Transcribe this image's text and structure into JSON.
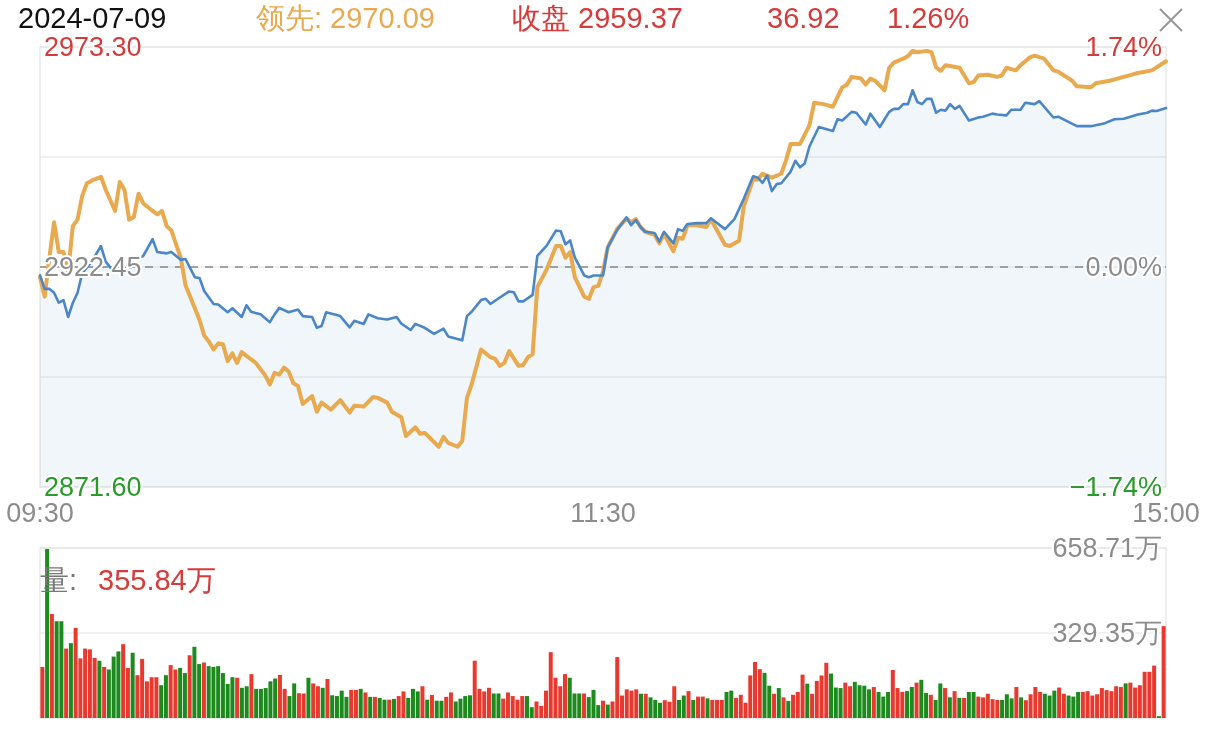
{
  "chart_data": [
    {
      "type": "line",
      "title": "2024-07-09",
      "annotations": [
        "领先: 2970.09",
        "收盘 2959.37",
        "36.92",
        "1.26%"
      ],
      "categories": [
        "09:30",
        null,
        null,
        null,
        null,
        null,
        null,
        null,
        null,
        null,
        null,
        null,
        null,
        null,
        null,
        null,
        null,
        null,
        null,
        null,
        null,
        null,
        null,
        null,
        null,
        null,
        null,
        null,
        null,
        null,
        null,
        null,
        null,
        null,
        null,
        null,
        null,
        null,
        null,
        null,
        null,
        null,
        null,
        null,
        null,
        null,
        null,
        null,
        null,
        null,
        null,
        null,
        null,
        null,
        null,
        null,
        null,
        null,
        null,
        null,
        null,
        null,
        null,
        null,
        null,
        null,
        null,
        null,
        null,
        null,
        null,
        null,
        null,
        null,
        null,
        null,
        null,
        null,
        null,
        null,
        null,
        null,
        null,
        null,
        null,
        null,
        null,
        null,
        null,
        null,
        null,
        null,
        null,
        null,
        null,
        null,
        null,
        null,
        null,
        null,
        null,
        null,
        null,
        null,
        null,
        null,
        null,
        null,
        null,
        null,
        null,
        null,
        null,
        null,
        null,
        null,
        null,
        null,
        null,
        null,
        "11:30",
        null,
        null,
        null,
        null,
        null,
        null,
        null,
        null,
        null,
        null,
        null,
        null,
        null,
        null,
        null,
        null,
        null,
        null,
        null,
        null,
        null,
        null,
        null,
        null,
        null,
        null,
        null,
        null,
        null,
        null,
        null,
        null,
        null,
        null,
        null,
        null,
        null,
        null,
        null,
        null,
        null,
        null,
        null,
        null,
        null,
        null,
        null,
        null,
        null,
        null,
        null,
        null,
        null,
        null,
        null,
        null,
        null,
        null,
        null,
        null,
        null,
        null,
        null,
        null,
        null,
        null,
        null,
        null,
        null,
        null,
        null,
        null,
        null,
        null,
        null,
        null,
        null,
        null,
        null,
        null,
        null,
        null,
        null,
        null,
        null,
        null,
        null,
        null,
        null,
        null,
        null,
        null,
        null,
        null,
        null,
        null,
        null,
        null,
        null,
        null,
        null,
        null,
        null,
        null,
        null,
        null,
        null,
        null,
        null,
        null,
        null,
        null,
        null,
        null,
        null,
        null,
        null,
        null,
        null,
        "15:00"
      ],
      "ylim": [
        2871.6,
        2973.3
      ],
      "yticks": [
        {
          "value": 2871.6,
          "label": "2871.60"
        },
        {
          "value": 2897.03,
          "label": null
        },
        {
          "value": 2922.45,
          "label": "2922.45"
        },
        {
          "value": 2947.88,
          "label": null
        },
        {
          "value": 2973.3,
          "label": "2973.30"
        }
      ],
      "y2lim": [
        -1.74,
        1.74
      ],
      "y2ticks": [
        {
          "value": -1.74,
          "label": "−1.74%"
        },
        {
          "value": 0,
          "label": "0.00%"
        },
        {
          "value": 1.74,
          "label": "1.74%"
        }
      ],
      "grid": "y",
      "ref_lines": [
        {
          "axis": "y",
          "value": 2922.45,
          "line_style": "dashed",
          "color": "#888888"
        }
      ],
      "series": [
        {
          "type": "area",
          "color": "#4a86c8",
          "values": [
            2920.5,
            2917.4,
            2917.4,
            2916.5,
            2914.2,
            2914.8,
            2910.9,
            2914.2,
            2916.5,
            2921.0,
            null,
            2923.7,
            null,
            2927.3,
            2923.7,
            2922.3,
            null,
            null,
            2922.3,
            2921.4,
            2924.1,
            null,
            2925.0,
            null,
            2928.9,
            2925.9,
            null,
            2925.6,
            2925.9,
            null,
            2924.1,
            2924.3,
            null,
            2920.1,
            2919.9,
            2916.9,
            null,
            2913.9,
            2913.8,
            null,
            2912.0,
            2912.9,
            null,
            2910.9,
            2913.6,
            2912.1,
            null,
            2911.5,
            null,
            2909.7,
            2911.5,
            2913.0,
            null,
            2912.0,
            null,
            2912.6,
            2911.1,
            null,
            2910.9,
            2908.4,
            2908.8,
            2912.0,
            null,
            null,
            2911.1,
            null,
            2908.5,
            2910.0,
            null,
            2909.3,
            2911.5,
            null,
            2910.6,
            null,
            2910.3,
            null,
            2910.9,
            2909.4,
            null,
            2907.9,
            2909.3,
            null,
            2908.4,
            null,
            2907.0,
            null,
            2908.2,
            2906.4,
            null,
            null,
            2905.5,
            2911.1,
            2912.1,
            null,
            2914.8,
            2915.1,
            2913.9,
            null,
            2915.4,
            null,
            2916.8,
            2916.6,
            2914.5,
            2914.5,
            null,
            2916.0,
            2925.0,
            null,
            2927.4,
            null,
            2930.9,
            2930.7,
            2927.7,
            2928.6,
            2924.6,
            null,
            2920.5,
            2920.1,
            2920.5,
            null,
            2920.5,
            2927.0,
            null,
            2931.0,
            null,
            2933.9,
            2932.1,
            2933.3,
            2931.7,
            2930.6,
            null,
            2930.3,
            2928.3,
            2930.6,
            null,
            2927.9,
            2931.2,
            2930.8,
            2932.4,
            null,
            2932.6,
            null,
            2932.6,
            2933.7,
            null,
            null,
            2931.2,
            null,
            2933.5,
            null,
            2938.2,
            null,
            2943.4,
            2943.1,
            2941.9,
            2943.6,
            2940.0,
            2941.6,
            2941.8,
            null,
            2944.5,
            2947.0,
            2945.5,
            2946.4,
            2950.3,
            null,
            2954.8,
            null,
            null,
            2953.9,
            2956.6,
            2956.3,
            null,
            2958.3,
            2958.1,
            null,
            2955.4,
            2957.9,
            null,
            2954.8,
            null,
            2958.3,
            2959.0,
            2959.0,
            2960.1,
            2960.1,
            2963.3,
            2960.6,
            2960.1,
            2961.3,
            2961.3,
            2958.1,
            2958.8,
            2958.6,
            2960.1,
            2959.0,
            2959.7,
            null,
            2956.3,
            null,
            2957.0,
            2957.2,
            null,
            2957.9,
            2957.7,
            null,
            2957.5,
            2958.8,
            null,
            2958.8,
            2960.4,
            null,
            2960.1,
            2960.8,
            null,
            null,
            2957.0,
            2957.2,
            null,
            null,
            null,
            2955.0,
            null,
            null,
            2955.0,
            null,
            null,
            2955.7,
            null,
            2956.6,
            null,
            2956.7,
            null,
            null,
            2957.7,
            null,
            2958.1,
            2958.6,
            2958.5,
            null,
            2959.2
          ]
        },
        {
          "type": "line",
          "color": "#e9a94f",
          "values": [
            2920.1,
            2915.6,
            2924.6,
            2932.8,
            2925.9,
            2925.9,
            2921.4,
            2931.9,
            2933.4,
            2938.9,
            2941.8,
            2942.4,
            null,
            2943.3,
            2940.3,
            null,
            2935.4,
            2942.1,
            2940.3,
            2933.4,
            2934.0,
            2939.4,
            2937.2,
            null,
            2935.4,
            2934.6,
            2935.4,
            2931.9,
            2930.9,
            2927.7,
            2924.6,
            2918.3,
            null,
            2912.9,
            2910.2,
            2906.6,
            2905.2,
            2903.4,
            2904.8,
            2904.6,
            2900.7,
            2902.5,
            2900.3,
            2902.8,
            2901.9,
            null,
            2900.3,
            null,
            2897.4,
            2895.3,
            2898.0,
            2897.6,
            2899.2,
            2898.3,
            2895.6,
            2894.9,
            2890.8,
            null,
            2892.6,
            2889.0,
            2891.1,
            null,
            2889.5,
            null,
            2891.7,
            null,
            2888.8,
            2890.4,
            null,
            2890.2,
            null,
            2892.4,
            2892.2,
            null,
            2891.1,
            2889.0,
            null,
            2887.7,
            2883.4,
            null,
            2885.4,
            2883.9,
            2884.1,
            null,
            null,
            2880.9,
            2883.2,
            2881.8,
            null,
            2880.9,
            2882.3,
            2892.2,
            2895.3,
            null,
            2903.4,
            null,
            2901.6,
            2901.2,
            2899.6,
            2900.3,
            2903.0,
            null,
            2899.6,
            2899.8,
            2901.6,
            2902.3,
            2917.8,
            null,
            2921.9,
            null,
            2927.3,
            2927.3,
            2924.6,
            2925.9,
            2920.1,
            null,
            2915.6,
            2915.1,
            2917.8,
            2918.1,
            2921.4,
            2927.0,
            null,
            2931.2,
            null,
            2933.7,
            2932.8,
            2933.5,
            2931.7,
            2930.6,
            null,
            2929.9,
            2927.9,
            2930.1,
            null,
            2926.1,
            2929.2,
            2929.0,
            2932.1,
            null,
            2932.1,
            null,
            2931.7,
            2933.5,
            null,
            null,
            2927.6,
            2927.3,
            null,
            2928.5,
            2936.4,
            null,
            2942.7,
            2942.7,
            2944.0,
            null,
            2943.1,
            null,
            2944.0,
            2947.1,
            2950.9,
            null,
            2950.9,
            null,
            2955.2,
            2960.4,
            null,
            2960.1,
            null,
            2959.5,
            null,
            2964.0,
            2964.6,
            2966.4,
            null,
            2966.0,
            2964.6,
            2966.0,
            2965.5,
            null,
            2963.3,
            2968.5,
            2969.7,
            null,
            2970.6,
            2971.2,
            2972.4,
            2972.1,
            null,
            2972.4,
            2972.1,
            2968.6,
            2967.8,
            2969.1,
            null,
            null,
            2968.5,
            null,
            2964.9,
            2965.2,
            2966.7,
            null,
            2966.9,
            null,
            2966.4,
            2966.7,
            2968.5,
            null,
            2967.9,
            2969.1,
            null,
            2970.9,
            2971.3,
            null,
            2970.6,
            null,
            2967.9,
            2967.6,
            null,
            null,
            2965.5,
            2964.2,
            null,
            null,
            2964.0,
            2964.9,
            null,
            null,
            2965.5,
            null,
            null,
            2966.4,
            null,
            null,
            2967.3,
            null,
            null,
            2967.9,
            null,
            null,
            2970.0
          ]
        }
      ]
    },
    {
      "type": "bar",
      "annotations": [
        "量:",
        "355.84万"
      ],
      "ylim": [
        0,
        658.71
      ],
      "yticks": [
        {
          "value": 329.35,
          "label": "329.35万"
        },
        {
          "value": 658.71,
          "label": "658.71万"
        }
      ],
      "grid": "y",
      "tick_labels": "y",
      "categories": [
        null,
        null,
        null,
        null,
        null,
        null,
        null,
        null,
        null,
        null,
        null,
        null,
        null,
        null,
        null,
        null,
        null,
        null,
        null,
        null,
        null,
        null,
        null,
        null,
        null,
        null,
        null,
        null,
        null,
        null,
        null,
        null,
        null,
        null,
        null,
        null,
        null,
        null,
        null,
        null,
        null,
        null,
        null,
        null,
        null,
        null,
        null,
        null,
        null,
        null,
        null,
        null,
        null,
        null,
        null,
        null,
        null,
        null,
        null,
        null,
        null,
        null,
        null,
        null,
        null,
        null,
        null,
        null,
        null,
        null,
        null,
        null,
        null,
        null,
        null,
        null,
        null,
        null,
        null,
        null,
        null,
        null,
        null,
        null,
        null,
        null,
        null,
        null,
        null,
        null,
        null,
        null,
        null,
        null,
        null,
        null,
        null,
        null,
        null,
        null,
        null,
        null,
        null,
        null,
        null,
        null,
        null,
        null,
        null,
        null,
        null,
        null,
        null,
        null,
        null,
        null,
        null,
        null,
        null,
        null,
        null,
        null,
        null,
        null,
        null,
        null,
        null,
        null,
        null,
        null,
        null,
        null,
        null,
        null,
        null,
        null,
        null,
        null,
        null,
        null,
        null,
        null,
        null,
        null,
        null,
        null,
        null,
        null,
        null,
        null,
        null,
        null,
        null,
        null,
        null,
        null,
        null,
        null,
        null,
        null,
        null,
        null,
        null,
        null,
        null,
        null,
        null,
        null,
        null,
        null,
        null,
        null,
        null,
        null,
        null,
        null,
        null,
        null,
        null,
        null,
        null,
        null,
        null,
        null,
        null,
        null,
        null,
        null,
        null,
        null,
        null,
        null,
        null,
        null,
        null,
        null,
        null,
        null,
        null,
        null,
        null,
        null,
        null,
        null,
        null,
        null,
        null,
        null,
        null,
        null,
        null,
        null,
        null,
        null,
        null,
        null,
        null,
        null,
        null,
        null,
        null,
        null,
        null,
        null,
        null,
        null,
        null,
        null,
        null,
        null,
        null,
        null,
        null,
        null,
        null,
        null,
        null
      ],
      "values": [
        198,
        655,
        403,
        375,
        375,
        269,
        290,
        349,
        231,
        269,
        266,
        233,
        222,
        198,
        188,
        238,
        258,
        286,
        194,
        253,
        166,
        229,
        142,
        158,
        158,
        127,
        166,
        205,
        188,
        194,
        174,
        243,
        276,
        209,
        215,
        201,
        198,
        201,
        174,
        132,
        158,
        156,
        117,
        123,
        170,
        113,
        113,
        116,
        142,
        153,
        167,
        113,
        85,
        134,
        96,
        95,
        156,
        134,
        123,
        117,
        151,
        88,
        85,
        106,
        82,
        109,
        109,
        113,
        99,
        82,
        82,
        78,
        71,
        71,
        74,
        85,
        103,
        78,
        113,
        103,
        123,
        71,
        89,
        67,
        67,
        82,
        99,
        64,
        75,
        85,
        88,
        222,
        113,
        103,
        117,
        95,
        95,
        75,
        99,
        85,
        71,
        85,
        85,
        42,
        64,
        47,
        106,
        255,
        156,
        123,
        170,
        156,
        95,
        95,
        95,
        81,
        109,
        50,
        67,
        52,
        64,
        236,
        87,
        111,
        106,
        111,
        94,
        94,
        80,
        70,
        59,
        69,
        63,
        123,
        70,
        87,
        104,
        70,
        83,
        83,
        76,
        70,
        70,
        70,
        101,
        106,
        78,
        90,
        59,
        165,
        217,
        189,
        175,
        125,
        94,
        116,
        80,
        66,
        90,
        101,
        168,
        133,
        94,
        144,
        165,
        214,
        172,
        118,
        116,
        137,
        123,
        140,
        127,
        125,
        111,
        120,
        101,
        83,
        101,
        186,
        116,
        101,
        104,
        120,
        137,
        148,
        97,
        90,
        70,
        134,
        116,
        80,
        104,
        78,
        78,
        101,
        101,
        83,
        80,
        94,
        73,
        70,
        70,
        92,
        76,
        120,
        80,
        69,
        92,
        120,
        101,
        94,
        87,
        106,
        118,
        94,
        87,
        83,
        101,
        101,
        104,
        87,
        92,
        116,
        108,
        104,
        123,
        120,
        134,
        137,
        118,
        127,
        179,
        179,
        203,
        7,
        356
      ],
      "colors": [
        "#e8392f",
        "#1d8a1d",
        "#e8392f",
        "#1d8a1d",
        "#1d8a1d",
        "#e8392f",
        "#1d8a1d",
        "#e8392f",
        "#e8392f",
        "#e8392f",
        "#e8392f",
        "#e8392f",
        "#1d8a1d",
        "#e8392f",
        "#1d8a1d",
        "#1d8a1d",
        "#1d8a1d",
        "#e8392f",
        "#e8392f",
        "#1d8a1d",
        "#e8392f",
        "#e8392f",
        "#e8392f",
        "#e8392f",
        "#e8392f",
        "#1d8a1d",
        "#1d8a1d",
        "#e8392f",
        "#e8392f",
        "#1d8a1d",
        "#1d8a1d",
        "#e8392f",
        "#1d8a1d",
        "#1d8a1d",
        "#e8392f",
        "#1d8a1d",
        "#1d8a1d",
        "#1d8a1d",
        "#1d8a1d",
        "#1d8a1d",
        "#1d8a1d",
        "#e8392f",
        "#1d8a1d",
        "#1d8a1d",
        "#e8392f",
        "#1d8a1d",
        "#1d8a1d",
        "#1d8a1d",
        "#1d8a1d",
        "#1d8a1d",
        "#e8392f",
        "#e8392f",
        "#1d8a1d",
        "#1d8a1d",
        "#e8392f",
        "#e8392f",
        "#1d8a1d",
        "#e8392f",
        "#e8392f",
        "#1d8a1d",
        "#e8392f",
        "#1d8a1d",
        "#1d8a1d",
        "#1d8a1d",
        "#1d8a1d",
        "#e8392f",
        "#e8392f",
        "#1d8a1d",
        "#e8392f",
        "#1d8a1d",
        "#e8392f",
        "#1d8a1d",
        "#1d8a1d",
        "#e8392f",
        "#1d8a1d",
        "#e8392f",
        "#e8392f",
        "#1d8a1d",
        "#1d8a1d",
        "#1d8a1d",
        "#e8392f",
        "#1d8a1d",
        "#e8392f",
        "#1d8a1d",
        "#1d8a1d",
        "#e8392f",
        "#e8392f",
        "#1d8a1d",
        "#1d8a1d",
        "#1d8a1d",
        "#1d8a1d",
        "#e8392f",
        "#e8392f",
        "#e8392f",
        "#e8392f",
        "#1d8a1d",
        "#1d8a1d",
        "#e8392f",
        "#e8392f",
        "#e8392f",
        "#e8392f",
        "#e8392f",
        "#1d8a1d",
        "#1d8a1d",
        "#e8392f",
        "#e8392f",
        "#e8392f",
        "#e8392f",
        "#e8392f",
        "#e8392f",
        "#e8392f",
        "#1d8a1d",
        "#1d8a1d",
        "#1d8a1d",
        "#e8392f",
        "#1d8a1d",
        "#1d8a1d",
        "#1d8a1d",
        "#e8392f",
        "#1d8a1d",
        "#e8392f",
        "#e8392f",
        "#e8392f",
        "#e8392f",
        "#e8392f",
        "#e8392f",
        "#1d8a1d",
        "#e8392f",
        "#1d8a1d",
        "#1d8a1d",
        "#1d8a1d",
        "#e8392f",
        "#e8392f",
        "#e8392f",
        "#1d8a1d",
        "#1d8a1d",
        "#e8392f",
        "#1d8a1d",
        "#e8392f",
        "#e8392f",
        "#1d8a1d",
        "#e8392f",
        "#e8392f",
        "#e8392f",
        "#1d8a1d",
        "#1d8a1d",
        "#e8392f",
        "#e8392f",
        "#e8392f",
        "#e8392f",
        "#e8392f",
        "#e8392f",
        "#1d8a1d",
        "#1d8a1d",
        "#e8392f",
        "#1d8a1d",
        "#e8392f",
        "#1d8a1d",
        "#e8392f",
        "#e8392f",
        "#e8392f",
        "#1d8a1d",
        "#e8392f",
        "#e8392f",
        "#e8392f",
        "#e8392f",
        "#1d8a1d",
        "#1d8a1d",
        "#1d8a1d",
        "#e8392f",
        "#e8392f",
        "#1d8a1d",
        "#1d8a1d",
        "#1d8a1d",
        "#1d8a1d",
        "#e8392f",
        "#1d8a1d",
        "#1d8a1d",
        "#1d8a1d",
        "#e8392f",
        "#e8392f",
        "#e8392f",
        "#1d8a1d",
        "#1d8a1d",
        "#e8392f",
        "#1d8a1d",
        "#1d8a1d",
        "#e8392f",
        "#1d8a1d",
        "#1d8a1d",
        "#e8392f",
        "#1d8a1d",
        "#e8392f",
        "#1d8a1d",
        "#e8392f",
        "#1d8a1d",
        "#1d8a1d",
        "#e8392f",
        "#e8392f",
        "#e8392f",
        "#e8392f",
        "#e8392f",
        "#1d8a1d",
        "#1d8a1d",
        "#1d8a1d",
        "#e8392f",
        "#1d8a1d",
        "#e8392f",
        "#e8392f",
        "#e8392f",
        "#e8392f",
        "#1d8a1d",
        "#1d8a1d",
        "#1d8a1d",
        "#e8392f",
        "#e8392f",
        "#1d8a1d",
        "#1d8a1d",
        "#1d8a1d",
        "#e8392f",
        "#e8392f",
        "#e8392f",
        "#e8392f",
        "#e8392f",
        "#e8392f",
        "#e8392f",
        "#e8392f",
        "#e8392f",
        "#1d8a1d",
        "#e8392f",
        "#e8392f",
        "#e8392f",
        "#e8392f",
        "#e8392f",
        "#e8392f",
        "#1d8a1d",
        "#e8392f"
      ]
    }
  ]
}
